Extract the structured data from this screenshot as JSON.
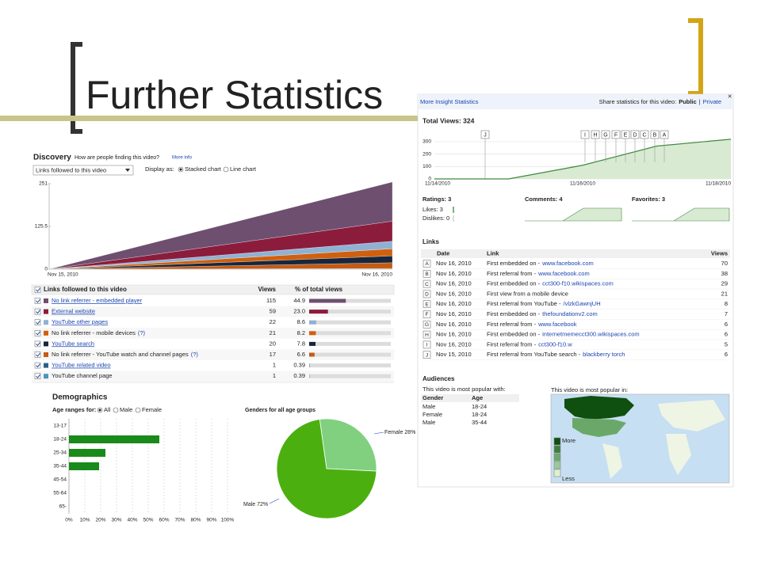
{
  "slide": {
    "title": "Further Statistics"
  },
  "discovery": {
    "heading": "Discovery",
    "question": "How are people finding this video?",
    "more_info": "More info",
    "dropdown": "Links followed to this video",
    "display_as": "Display as:",
    "stacked": "Stacked chart",
    "line": "Line chart",
    "chart": {
      "type": "area",
      "ylim": [
        0,
        251
      ],
      "yticks": [
        0,
        125.5,
        251
      ],
      "x_labels": [
        "Nov 15, 2010",
        "Nov 16, 2010"
      ]
    },
    "table": {
      "header": [
        "Links followed to this video",
        "Views",
        "% of total views"
      ],
      "rows": [
        {
          "name": "No link referrer - embedded player",
          "link": true,
          "color": "#6e4f70",
          "views": 115,
          "pct": 44.9
        },
        {
          "name": "External website",
          "link": true,
          "color": "#8c1c3c",
          "views": 59,
          "pct": 23,
          "pct_label": "23.0"
        },
        {
          "name": "YouTube other pages",
          "link": true,
          "color": "#8fb2d4",
          "views": 22,
          "pct": 8.6
        },
        {
          "name": "No link referrer - mobile devices",
          "help": "(?)",
          "link": false,
          "color": "#d0600e",
          "views": 21,
          "pct": 8.2
        },
        {
          "name": "YouTube search",
          "link": true,
          "color": "#17263c",
          "views": 20,
          "pct": 7.8
        },
        {
          "name": "No link referrer - YouTube watch and channel pages",
          "help": "(?)",
          "link": false,
          "color": "#c45a14",
          "views": 17,
          "pct": 6.6
        },
        {
          "name": "YouTube related video",
          "link": true,
          "color": "#2b6184",
          "views": 1,
          "pct": 0.39
        },
        {
          "name": "YouTube channel page",
          "link": false,
          "color": "#4f93b8",
          "views": 1,
          "pct": 0.39
        }
      ]
    }
  },
  "insight": {
    "header": "More Insight Statistics",
    "share": "Share statistics for this video:",
    "public": "Public",
    "sep": "|",
    "private": "Private",
    "close": "×",
    "total_views": "Total Views: 324",
    "chart": {
      "type": "area",
      "categories": [
        "11/14/2010",
        null,
        "11/16/2010",
        null,
        "11/18/2010"
      ],
      "values": [
        0,
        0,
        110,
        265,
        320
      ],
      "ylim": [
        0,
        300
      ],
      "yticks": [
        0,
        100,
        200,
        300
      ],
      "color": "#3d8a3d"
    },
    "ratings": "Ratings: 3",
    "likes": "Likes: 3",
    "dislikes": "Dislikes: 0",
    "comments": "Comments: 4",
    "favorites": "Favorites: 3",
    "links": {
      "heading": "Links",
      "header": [
        "Date",
        "Link",
        "Views"
      ],
      "rows": [
        {
          "letter": "A",
          "date": "Nov 16, 2010",
          "text": "First embedded on -",
          "url": "www.facebook.com",
          "views": 70
        },
        {
          "letter": "B",
          "date": "Nov 16, 2010",
          "text": "First referral from -",
          "url": "www.facebook.com",
          "views": 38
        },
        {
          "letter": "C",
          "date": "Nov 16, 2010",
          "text": "First embedded on -",
          "url": "cct300-f10.wikispaces.com",
          "views": 29
        },
        {
          "letter": "D",
          "date": "Nov 16, 2010",
          "text": "First view from a mobile device",
          "views": 21
        },
        {
          "letter": "E",
          "date": "Nov 16, 2010",
          "text": "First referral from YouTube -",
          "url": "/vlzkGawnjUH",
          "views": 8
        },
        {
          "letter": "F",
          "date": "Nov 16, 2010",
          "text": "First embedded on -",
          "url": "thefoundationv2.com",
          "views": 7
        },
        {
          "letter": "G",
          "date": "Nov 16, 2010",
          "text": "First referral from -",
          "url": "www.facebook",
          "views": 6
        },
        {
          "letter": "H",
          "date": "Nov 16, 2010",
          "text": "First embedded on -",
          "url": "internetmemecct300.wikispaces.com",
          "views": 6
        },
        {
          "letter": "I",
          "date": "Nov 16, 2010",
          "text": "First referral from -",
          "url": "cct300-f10.w",
          "views": 5
        },
        {
          "letter": "J",
          "date": "Nov 15, 2010",
          "text": "First referral from YouTube search -",
          "url": "blackberry torch",
          "views": 6
        }
      ]
    },
    "audiences": {
      "heading": "Audiences",
      "popular_with": "This video is most popular with:",
      "header": [
        "Gender",
        "Age"
      ],
      "rows": [
        [
          "Male",
          "18-24"
        ],
        [
          "Female",
          "18-24"
        ],
        [
          "Male",
          "35-44"
        ]
      ],
      "popular_in": "This video is most popular in:",
      "more": "More",
      "less": "Less"
    }
  },
  "demographics": {
    "heading": "Demographics",
    "age_for": "Age ranges for:",
    "all": "All",
    "male": "Male",
    "female": "Female",
    "bars": {
      "type": "bar",
      "categories": [
        "13-17",
        "18-24",
        "25-34",
        "35-44",
        "45-54",
        "55-64",
        "65-"
      ],
      "values": [
        0,
        57,
        23,
        19,
        0,
        0,
        0
      ],
      "color": "#1a8a1a",
      "xlim": [
        0,
        100
      ],
      "xticks": [
        {
          "value": 0,
          "label": "0%"
        },
        {
          "value": 10,
          "label": "10%"
        },
        {
          "value": 20,
          "label": "20%"
        },
        {
          "value": 30,
          "label": "30%"
        },
        {
          "value": 40,
          "label": "40%"
        },
        {
          "value": 50,
          "label": "50%"
        },
        {
          "value": 60,
          "label": "60%"
        },
        {
          "value": 70,
          "label": "70%"
        },
        {
          "value": 80,
          "label": "80%"
        },
        {
          "value": 90,
          "label": "90%"
        },
        {
          "value": 100,
          "label": "100%"
        }
      ],
      "grid": true
    },
    "pie": {
      "type": "pie",
      "title": "Genders for all age groups",
      "categories": [
        "Female",
        "Male"
      ],
      "values": [
        28,
        72
      ],
      "value_labels": [
        "Female 28%",
        "Male 72%"
      ],
      "colors": [
        "#80d080",
        "#4caf10"
      ]
    }
  }
}
